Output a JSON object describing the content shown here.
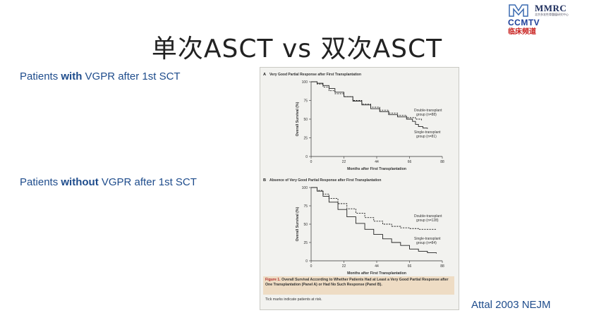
{
  "slide": {
    "title": "单次ASCT vs 双次ASCT",
    "citation": "Attal 2003 NEJM"
  },
  "logo": {
    "brand": "MMRC",
    "brand_subtitle": "北京多发性骨髓瘤研究中心",
    "channel": "CCMTV",
    "channel_cn": "临床频道"
  },
  "side_labels": [
    {
      "pre": "Patients ",
      "bold": "with",
      "post": " VGPR after 1st SCT"
    },
    {
      "pre": "Patients ",
      "bold": "without",
      "post": " VGPR after 1st SCT"
    }
  ],
  "figure": {
    "caption_label": "Figure 1.",
    "caption_text": " Overall Survival According to Whether Patients Had at Least a Very Good Partial Response after One Transplantation (Panel A) or Had No Such Response (Panel B).",
    "caption_note": "Tick marks indicate patients at risk."
  },
  "colors": {
    "text_blue": "#1e4c8c",
    "ccmtv_blue": "#1d3f9a",
    "ccmtv_red": "#c8201e",
    "caption_bg": "#eedcc4"
  },
  "chart_data": [
    {
      "type": "line",
      "panel": "A",
      "title": "Very Good Partial Response after First Transplantation",
      "xlabel": "Months after First Transplantation",
      "ylabel": "Overall Survival (%)",
      "xticks": [
        0,
        22,
        44,
        66,
        88
      ],
      "yticks": [
        0,
        25,
        50,
        75,
        100
      ],
      "xlim": [
        0,
        88
      ],
      "ylim": [
        0,
        100
      ],
      "series": [
        {
          "name": "Double-transplant group (n=88)",
          "line": "dashed",
          "x": [
            0,
            4,
            8,
            12,
            16,
            22,
            28,
            34,
            40,
            46,
            52,
            58,
            64,
            70,
            74
          ],
          "y": [
            100,
            97,
            93,
            88,
            84,
            80,
            75,
            70,
            66,
            62,
            58,
            55,
            52,
            50,
            48
          ]
        },
        {
          "name": "Single-transplant group (n=81)",
          "line": "solid",
          "x": [
            0,
            4,
            8,
            12,
            16,
            22,
            28,
            34,
            40,
            46,
            52,
            58,
            64,
            68,
            70,
            72,
            75,
            78
          ],
          "y": [
            100,
            98,
            95,
            91,
            86,
            80,
            74,
            69,
            64,
            60,
            56,
            53,
            50,
            47,
            43,
            40,
            38,
            37
          ]
        }
      ]
    },
    {
      "type": "line",
      "panel": "B",
      "title": "Absence of Very Good Partial Response after First Transplantation",
      "xlabel": "Months after First Transplantation",
      "ylabel": "Overall Survival (%)",
      "xticks": [
        0,
        22,
        44,
        66,
        88
      ],
      "yticks": [
        0,
        25,
        50,
        75,
        100
      ],
      "xlim": [
        0,
        88
      ],
      "ylim": [
        0,
        100
      ],
      "series": [
        {
          "name": "Double-transplant group (n=128)",
          "line": "dashed",
          "x": [
            0,
            4,
            8,
            12,
            18,
            24,
            30,
            36,
            42,
            48,
            54,
            60,
            66,
            72,
            78,
            84
          ],
          "y": [
            100,
            96,
            91,
            85,
            78,
            71,
            65,
            59,
            54,
            50,
            47,
            45,
            44,
            43,
            43,
            43
          ]
        },
        {
          "name": "Single-transplant group (n=84)",
          "line": "solid",
          "x": [
            0,
            4,
            8,
            12,
            18,
            24,
            30,
            36,
            42,
            48,
            54,
            60,
            66,
            72,
            78,
            84
          ],
          "y": [
            100,
            95,
            88,
            80,
            70,
            60,
            51,
            43,
            36,
            30,
            25,
            21,
            16,
            13,
            11,
            10
          ]
        }
      ]
    }
  ]
}
